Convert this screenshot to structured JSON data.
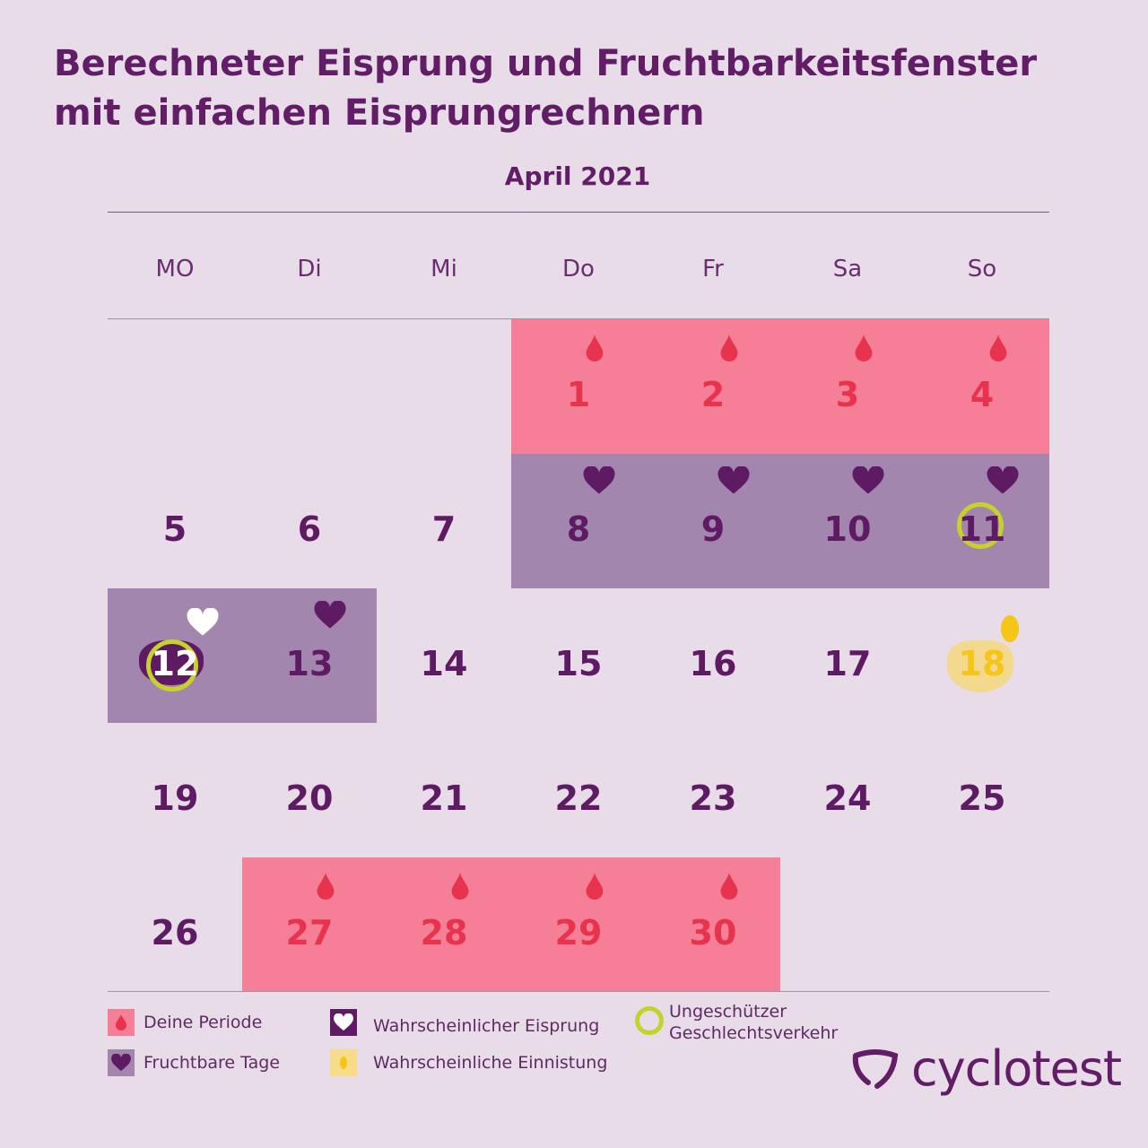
{
  "title_line1": "Berechneter Eisprung und Fruchtbarkeitsfenster",
  "title_line2": "mit einfachen Eisprungrechnern",
  "month": "April 2021",
  "weekdays": [
    "MO",
    "Di",
    "Mi",
    "Do",
    "Fr",
    "Sa",
    "So"
  ],
  "colors": {
    "period": "#f47f96",
    "fertile": "#a386ad",
    "text": "#5e1a63",
    "period_text": "#e8334f",
    "intercourse": "#c5d22a",
    "implantation": "#f5c518"
  },
  "days": [
    {
      "d": "1",
      "type": "period",
      "icon": "drop-icon"
    },
    {
      "d": "2",
      "type": "period",
      "icon": "drop-icon"
    },
    {
      "d": "3",
      "type": "period",
      "icon": "drop-icon"
    },
    {
      "d": "4",
      "type": "period",
      "icon": "drop-icon"
    },
    {
      "d": "5"
    },
    {
      "d": "6"
    },
    {
      "d": "7"
    },
    {
      "d": "8",
      "type": "fertile",
      "icon": "heart-icon"
    },
    {
      "d": "9",
      "type": "fertile",
      "icon": "heart-icon"
    },
    {
      "d": "10",
      "type": "fertile",
      "icon": "heart-icon"
    },
    {
      "d": "11",
      "type": "fertile",
      "icon": "heart-icon",
      "intercourse": true
    },
    {
      "d": "12",
      "type": "fertile",
      "icon": "ovulation-heart-icon",
      "intercourse": true,
      "ovulation": true
    },
    {
      "d": "13",
      "type": "fertile",
      "icon": "heart-icon"
    },
    {
      "d": "14"
    },
    {
      "d": "15"
    },
    {
      "d": "16"
    },
    {
      "d": "17"
    },
    {
      "d": "18",
      "implantation": true,
      "icon": "implantation-icon"
    },
    {
      "d": "19"
    },
    {
      "d": "20"
    },
    {
      "d": "21"
    },
    {
      "d": "22"
    },
    {
      "d": "23"
    },
    {
      "d": "24"
    },
    {
      "d": "25"
    },
    {
      "d": "26"
    },
    {
      "d": "27",
      "type": "period",
      "icon": "drop-icon"
    },
    {
      "d": "28",
      "type": "period",
      "icon": "drop-icon"
    },
    {
      "d": "29",
      "type": "period",
      "icon": "drop-icon"
    },
    {
      "d": "30",
      "type": "period",
      "icon": "drop-icon"
    }
  ],
  "first_weekday_index": 3,
  "legend": {
    "period": "Deine Periode",
    "fertile": "Fruchtbare Tage",
    "ovulation": "Wahrscheinlicher Eisprung",
    "implantation": "Wahrscheinliche Einnistung",
    "intercourse_1": "Ungeschützer",
    "intercourse_2": "Geschlechtsverkehr"
  },
  "logo": "cyclotest"
}
